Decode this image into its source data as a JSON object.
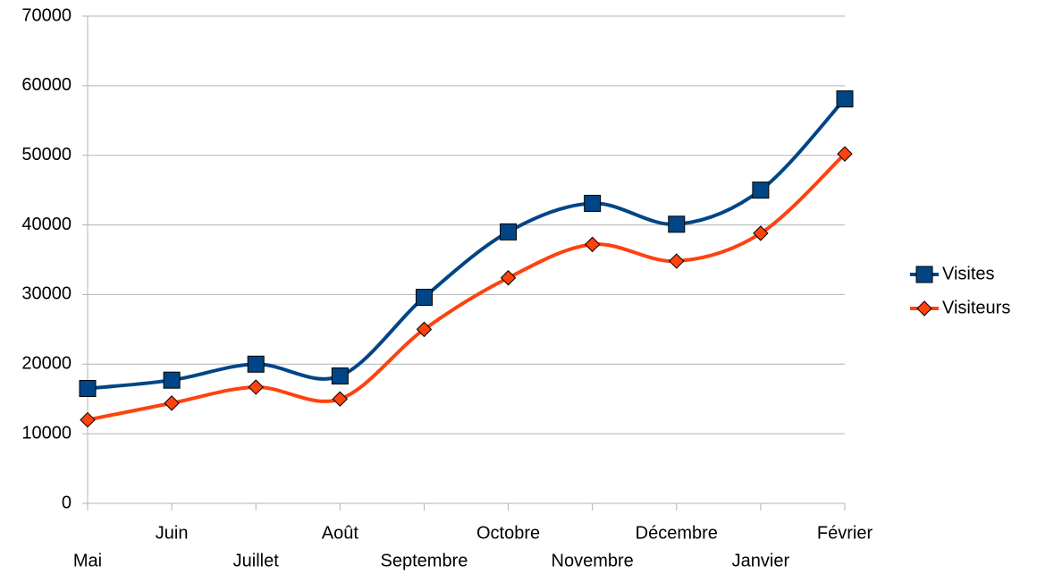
{
  "chart_data": {
    "type": "line",
    "categories": [
      "Mai",
      "Juin",
      "Juillet",
      "Août",
      "Septembre",
      "Octobre",
      "Novembre",
      "Décembre",
      "Janvier",
      "Février"
    ],
    "series": [
      {
        "name": "Visites",
        "color": "#004586",
        "marker": "square",
        "values": [
          16500,
          17700,
          20000,
          18300,
          29600,
          39000,
          43100,
          40100,
          45000,
          58100
        ]
      },
      {
        "name": "Visiteurs",
        "color": "#ff420e",
        "marker": "diamond",
        "values": [
          12000,
          14400,
          16700,
          15000,
          25000,
          32400,
          37200,
          34800,
          38800,
          50200
        ]
      }
    ],
    "ylim": [
      0,
      70000
    ],
    "yticks": [
      0,
      10000,
      20000,
      30000,
      40000,
      50000,
      60000,
      70000
    ],
    "grid": true,
    "smooth": true,
    "legend": "right"
  }
}
